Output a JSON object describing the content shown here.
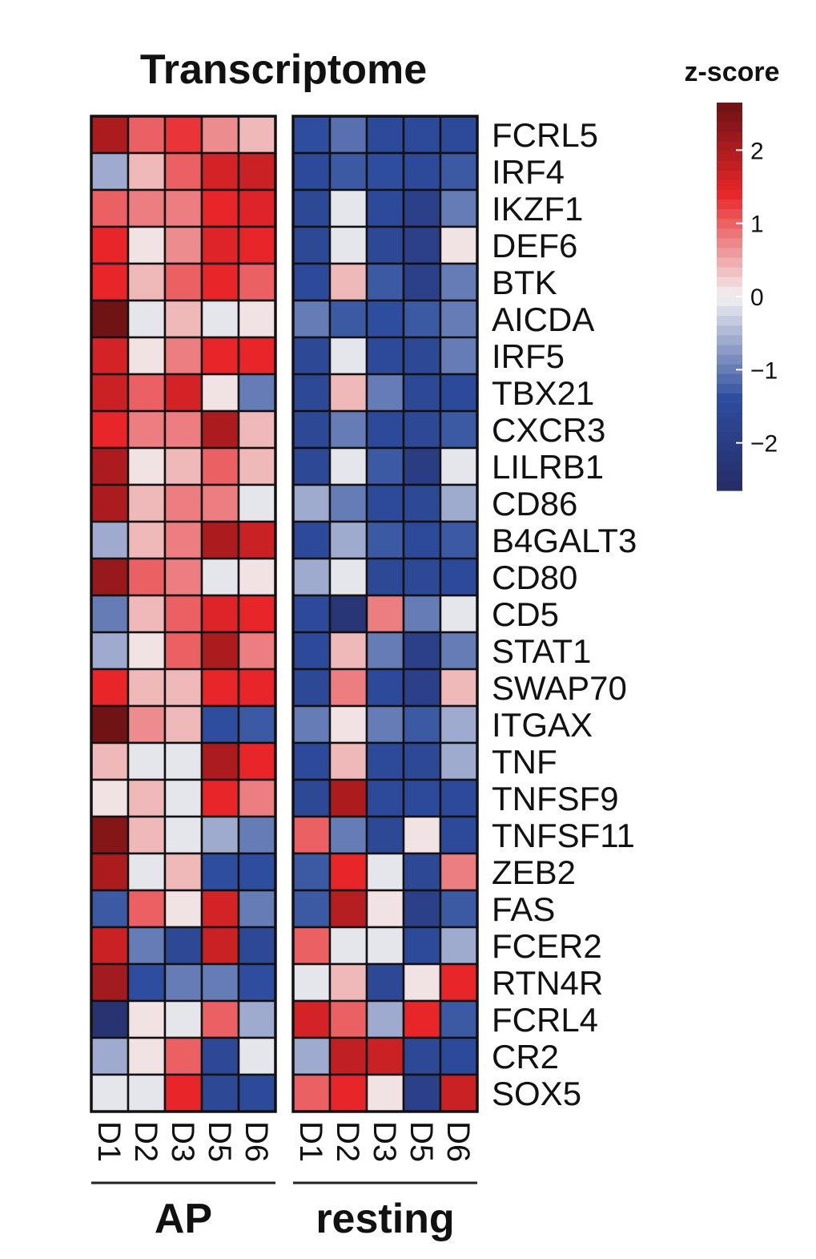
{
  "chart_data": {
    "type": "heatmap",
    "title": "Transcriptome",
    "legend_title": "z-score",
    "legend_ticks": [
      "2",
      "1",
      "0",
      "−1",
      "−2"
    ],
    "legend_tick_values": [
      2,
      1,
      0,
      -1,
      -2
    ],
    "legend_range": [
      -2.65,
      2.65
    ],
    "legend_placement": "right",
    "colors": {
      "low": "#262c66",
      "low_mid": "#2e4d9e",
      "mid": "#f2f2f2",
      "high_mid": "#e8262a",
      "high": "#6b1214",
      "grid": "#111111"
    },
    "groups": [
      {
        "name": "AP",
        "columns": [
          "D1",
          "D2",
          "D3",
          "D5",
          "D6"
        ]
      },
      {
        "name": "resting",
        "columns": [
          "D1",
          "D2",
          "D3",
          "D5",
          "D6"
        ]
      }
    ],
    "genes": [
      "FCRL5",
      "IRF4",
      "IKZF1",
      "DEF6",
      "BTK",
      "AICDA",
      "IRF5",
      "TBX21",
      "CXCR3",
      "LILRB1",
      "CD86",
      "B4GALT3",
      "CD80",
      "CD5",
      "STAT1",
      "SWAP70",
      "ITGAX",
      "TNF",
      "TNFSF9",
      "TNFSF11",
      "ZEB2",
      "FAS",
      "FCER2",
      "RTN4R",
      "FCRL4",
      "CR2",
      "SOX5"
    ],
    "values": [
      [
        2.0,
        1.0,
        1.3,
        0.7,
        0.4,
        -1.4,
        -1.1,
        -1.5,
        -1.5,
        -1.5
      ],
      [
        -0.6,
        0.4,
        1.0,
        1.6,
        1.7,
        -1.5,
        -1.3,
        -1.4,
        -1.5,
        -1.3
      ],
      [
        1.0,
        0.8,
        0.8,
        1.4,
        1.5,
        -1.6,
        -0.1,
        -1.5,
        -1.9,
        -1.0
      ],
      [
        1.4,
        0.1,
        0.7,
        1.5,
        1.4,
        -1.6,
        -0.1,
        -1.6,
        -1.9,
        0.1
      ],
      [
        1.4,
        0.4,
        1.0,
        1.4,
        1.0,
        -1.5,
        0.4,
        -1.3,
        -1.9,
        -1.0
      ],
      [
        2.6,
        -0.1,
        0.4,
        -0.1,
        0.1,
        -1.0,
        -1.3,
        -1.4,
        -1.3,
        -1.0
      ],
      [
        1.6,
        0.1,
        0.8,
        1.4,
        1.4,
        -1.6,
        -0.1,
        -1.5,
        -1.6,
        -1.0
      ],
      [
        1.7,
        1.0,
        1.6,
        0.1,
        -1.0,
        -1.6,
        0.4,
        -1.0,
        -1.6,
        -1.5
      ],
      [
        1.4,
        0.8,
        0.8,
        2.0,
        0.4,
        -1.6,
        -1.0,
        -1.5,
        -1.6,
        -1.3
      ],
      [
        2.0,
        0.1,
        0.4,
        1.0,
        0.4,
        -1.6,
        -0.1,
        -1.3,
        -2.0,
        -0.1
      ],
      [
        2.0,
        0.4,
        0.8,
        0.8,
        -0.1,
        -0.6,
        -1.0,
        -1.5,
        -1.6,
        -0.6
      ],
      [
        -0.6,
        0.4,
        0.8,
        2.0,
        1.7,
        -1.5,
        -0.6,
        -1.3,
        -1.5,
        -1.3
      ],
      [
        2.2,
        1.0,
        0.8,
        -0.1,
        0.1,
        -0.6,
        -0.1,
        -1.6,
        -1.6,
        -1.5
      ],
      [
        -1.0,
        0.4,
        1.0,
        1.5,
        1.4,
        -1.5,
        -2.3,
        0.8,
        -1.0,
        -0.1
      ],
      [
        -0.6,
        0.1,
        1.0,
        2.0,
        0.8,
        -1.5,
        0.4,
        -1.0,
        -1.9,
        -1.0
      ],
      [
        1.4,
        0.4,
        0.4,
        1.4,
        1.4,
        -1.6,
        0.8,
        -1.5,
        -1.9,
        0.4
      ],
      [
        2.6,
        0.7,
        0.4,
        -1.4,
        -1.3,
        -1.0,
        0.1,
        -1.0,
        -1.3,
        -0.6
      ],
      [
        0.4,
        -0.1,
        -0.1,
        2.0,
        1.4,
        -1.5,
        0.4,
        -1.5,
        -1.6,
        -0.6
      ],
      [
        0.1,
        0.4,
        -0.1,
        1.4,
        0.8,
        -1.6,
        2.0,
        -1.5,
        -1.5,
        -1.5
      ],
      [
        2.4,
        0.4,
        -0.1,
        -0.6,
        -1.0,
        1.0,
        -1.0,
        -1.6,
        0.1,
        -1.5
      ],
      [
        2.0,
        -0.1,
        0.4,
        -1.4,
        -1.4,
        -1.3,
        1.4,
        -0.1,
        -1.6,
        0.8
      ],
      [
        -1.3,
        1.0,
        0.1,
        1.6,
        -1.0,
        -1.3,
        1.9,
        0.1,
        -1.9,
        -1.3
      ],
      [
        1.7,
        -1.0,
        -1.6,
        1.7,
        -1.6,
        1.0,
        -0.1,
        -0.1,
        -1.5,
        -0.6
      ],
      [
        2.1,
        -1.4,
        -1.0,
        -1.0,
        -1.4,
        -0.1,
        0.4,
        -1.6,
        0.1,
        1.4
      ],
      [
        -2.4,
        0.1,
        -0.1,
        1.0,
        -0.6,
        1.6,
        1.0,
        -0.6,
        1.4,
        -1.3
      ],
      [
        -0.6,
        0.1,
        1.0,
        -1.6,
        -0.1,
        -0.6,
        1.8,
        1.7,
        -1.6,
        -1.5
      ],
      [
        -0.1,
        -0.1,
        1.4,
        -1.6,
        -1.5,
        1.0,
        1.4,
        0.1,
        -1.9,
        1.7
      ]
    ]
  }
}
